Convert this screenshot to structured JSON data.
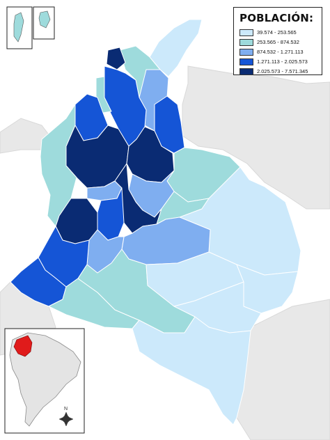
{
  "legend": {
    "title": "POBLACIÓN:",
    "items": [
      {
        "label": "39.574 - 253.565",
        "color": "#cce9fb"
      },
      {
        "label": "253.565 - 874.532",
        "color": "#9edbdc"
      },
      {
        "label": "874.532 - 1.271.113",
        "color": "#7faef0"
      },
      {
        "label": "1.271.113 - 2.025.573",
        "color": "#1555d6"
      },
      {
        "label": "2.025.573 - 7.571.345",
        "color": "#0a2b73"
      }
    ]
  },
  "inset": {
    "north_label": "N",
    "highlight_color": "#e01b1b"
  },
  "colors": {
    "ocean": "#ffffff",
    "neighbor_land": "#e8e8e8",
    "border": "#ffffff"
  }
}
